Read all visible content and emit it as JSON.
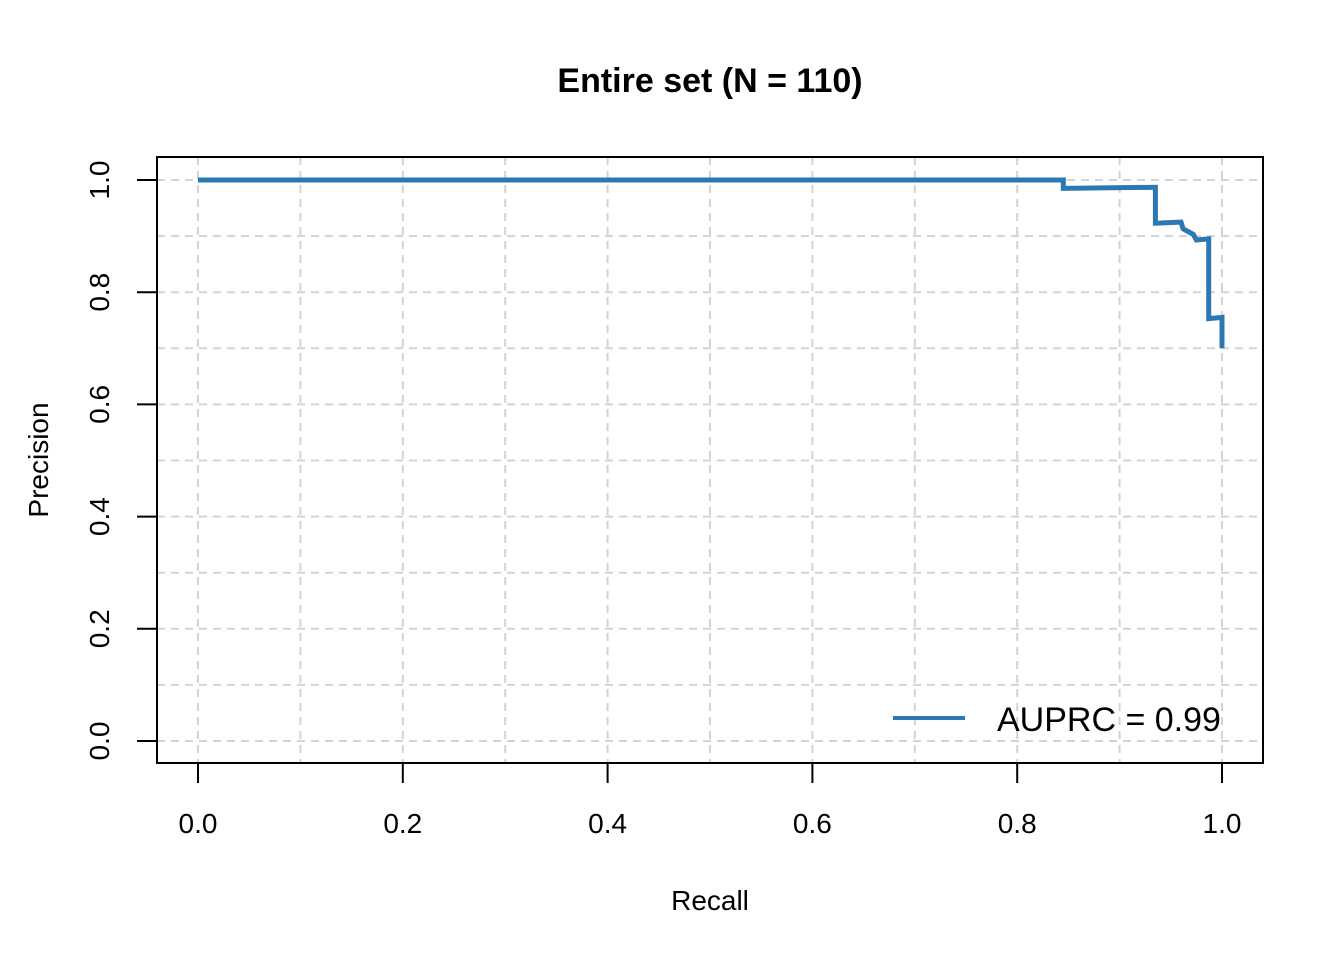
{
  "chart_data": {
    "type": "line",
    "title": "Entire set (N = 110)",
    "xlabel": "Recall",
    "ylabel": "Precision",
    "xlim": [
      0.0,
      1.0
    ],
    "ylim": [
      0.0,
      1.0
    ],
    "x_ticks": [
      "0.0",
      "0.2",
      "0.4",
      "0.6",
      "0.8",
      "1.0"
    ],
    "y_ticks": [
      "0.0",
      "0.2",
      "0.4",
      "0.6",
      "0.8",
      "1.0"
    ],
    "grid": true,
    "legend_position": "bottom-right",
    "series": [
      {
        "name": "AUPRC = 0.99",
        "color": "#2b78b3",
        "points": [
          {
            "x": 0.0,
            "y": 1.0
          },
          {
            "x": 0.845,
            "y": 1.0
          },
          {
            "x": 0.845,
            "y": 0.985
          },
          {
            "x": 0.935,
            "y": 0.987
          },
          {
            "x": 0.935,
            "y": 0.923
          },
          {
            "x": 0.96,
            "y": 0.925
          },
          {
            "x": 0.962,
            "y": 0.913
          },
          {
            "x": 0.972,
            "y": 0.903
          },
          {
            "x": 0.975,
            "y": 0.893
          },
          {
            "x": 0.987,
            "y": 0.895
          },
          {
            "x": 0.987,
            "y": 0.753
          },
          {
            "x": 1.0,
            "y": 0.755
          },
          {
            "x": 1.0,
            "y": 0.7
          }
        ]
      }
    ]
  }
}
